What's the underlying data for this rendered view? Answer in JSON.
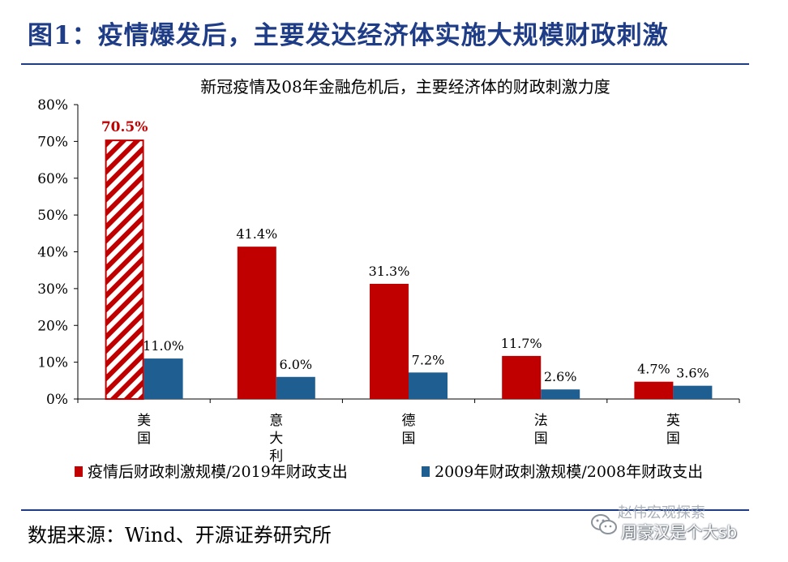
{
  "figure_title": "图1：疫情爆发后，主要发达经济体实施大规模财政刺激",
  "source_note": "数据来源：Wind、开源证券研究所",
  "watermark": {
    "line1": "赵伟宏观探索",
    "line2": "周豪汉是个大sb",
    "icon": "wechat-icon"
  },
  "colors": {
    "title_blue": "#1f3c87",
    "series_red": "#c00000",
    "series_blue": "#1f5e91",
    "highlight_label": "#c00000"
  },
  "chart_data": {
    "type": "bar",
    "title": "新冠疫情及08年金融危机后，主要经济体的财政刺激力度",
    "categories": [
      "美国",
      "意大利",
      "德国",
      "法国",
      "英国"
    ],
    "category_labels_vertical": [
      [
        "美",
        "国"
      ],
      [
        "意",
        "大",
        "利"
      ],
      [
        "德",
        "国"
      ],
      [
        "法",
        "国"
      ],
      [
        "英",
        "国"
      ]
    ],
    "series": [
      {
        "name": "疫情后财政刺激规模/2019年财政支出",
        "values": [
          70.5,
          41.4,
          31.3,
          11.7,
          4.7
        ],
        "labels": [
          "70.5%",
          "41.4%",
          "31.3%",
          "11.7%",
          "4.7%"
        ]
      },
      {
        "name": "2009年财政刺激规模/2008年财政支出",
        "values": [
          11.0,
          6.0,
          7.2,
          2.6,
          3.6
        ],
        "labels": [
          "11.0%",
          "6.0%",
          "7.2%",
          "2.6%",
          "3.6%"
        ]
      }
    ],
    "highlight": {
      "series": 0,
      "category": 0,
      "style": "hatched"
    },
    "yticks": [
      "0%",
      "10%",
      "20%",
      "30%",
      "40%",
      "50%",
      "60%",
      "70%",
      "80%"
    ],
    "ylim": [
      0,
      80
    ],
    "grid": false,
    "legend": "bottom"
  }
}
